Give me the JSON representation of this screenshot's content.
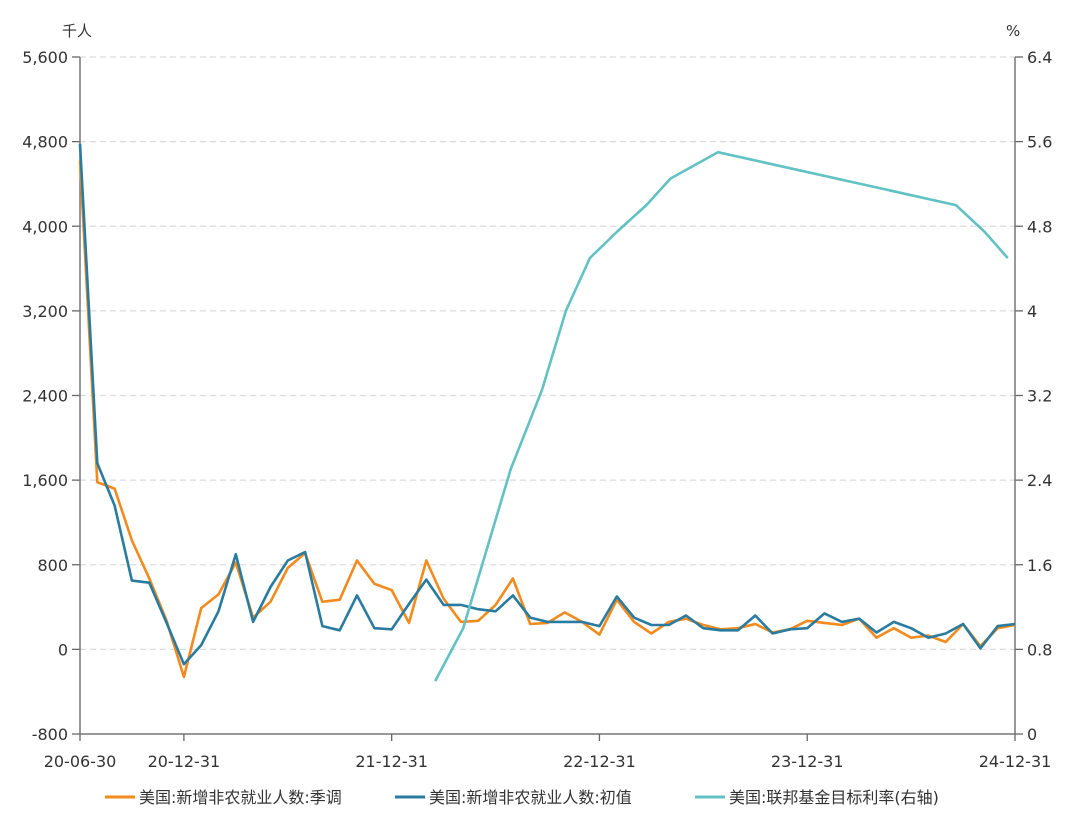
{
  "chart_data": {
    "type": "line",
    "left_unit": "千人",
    "right_unit": "%",
    "x_ticks": [
      {
        "label": "20-06-30",
        "index": 0
      },
      {
        "label": "20-12-31",
        "index": 6
      },
      {
        "label": "21-12-31",
        "index": 18
      },
      {
        "label": "22-12-31",
        "index": 30
      },
      {
        "label": "23-12-31",
        "index": 42
      },
      {
        "label": "24-12-31",
        "index": 54
      }
    ],
    "left_axis": {
      "min": -800,
      "max": 5600,
      "ticks": [
        "-800",
        "0",
        "800",
        "1,600",
        "2,400",
        "3,200",
        "4,000",
        "4,800",
        "5,600"
      ],
      "tick_values": [
        -800,
        0,
        800,
        1600,
        2400,
        3200,
        4000,
        4800,
        5600
      ]
    },
    "right_axis": {
      "min": 0,
      "max": 6.4,
      "ticks": [
        "0",
        "0.8",
        "1.6",
        "2.4",
        "3.2",
        "4",
        "4.8",
        "5.6",
        "6.4"
      ],
      "tick_values": [
        0,
        0.8,
        1.6,
        2.4,
        3.2,
        4,
        4.8,
        5.6,
        6.4
      ]
    },
    "x_start": "2020-06",
    "x_end": "2024-12",
    "series": [
      {
        "name": "美国:新增非农就业人数:季调",
        "axis": "left",
        "color": "#F28A1E",
        "values": [
          4620,
          1580,
          1520,
          1030,
          670,
          270,
          -260,
          390,
          520,
          820,
          300,
          450,
          770,
          910,
          450,
          470,
          840,
          620,
          560,
          250,
          840,
          480,
          260,
          270,
          420,
          670,
          240,
          250,
          350,
          260,
          140,
          470,
          260,
          150,
          260,
          290,
          230,
          190,
          200,
          240,
          160,
          190,
          270,
          250,
          230,
          290,
          110,
          200,
          110,
          130,
          70,
          240,
          30,
          200,
          230
        ]
      },
      {
        "name": "美国:新增非农就业人数:初值",
        "axis": "left",
        "color": "#2A7BA0",
        "values": [
          4780,
          1760,
          1360,
          650,
          630,
          250,
          -140,
          40,
          360,
          900,
          260,
          590,
          840,
          920,
          220,
          180,
          510,
          200,
          190,
          430,
          660,
          420,
          420,
          380,
          360,
          510,
          300,
          260,
          260,
          260,
          220,
          500,
          300,
          230,
          230,
          320,
          200,
          180,
          180,
          320,
          150,
          190,
          200,
          340,
          260,
          290,
          160,
          260,
          200,
          110,
          150,
          240,
          10,
          220,
          240
        ]
      },
      {
        "name": "美国:联邦基金目标利率(右轴)",
        "axis": "right",
        "color": "#62C2C3",
        "points": [
          {
            "date": "2022-03-16",
            "value": 0.5
          },
          {
            "date": "2022-05-04",
            "value": 1.0
          },
          {
            "date": "2022-07-27",
            "value": 2.5
          },
          {
            "date": "2022-09-21",
            "value": 3.25
          },
          {
            "date": "2022-11-02",
            "value": 4.0
          },
          {
            "date": "2022-12-14",
            "value": 4.5
          },
          {
            "date": "2023-02-01",
            "value": 4.75
          },
          {
            "date": "2023-03-22",
            "value": 5.0
          },
          {
            "date": "2023-05-03",
            "value": 5.25
          },
          {
            "date": "2023-07-26",
            "value": 5.5
          },
          {
            "date": "2024-09-18",
            "value": 5.0
          },
          {
            "date": "2024-11-07",
            "value": 4.75
          },
          {
            "date": "2024-12-18",
            "value": 4.5
          }
        ]
      }
    ],
    "grid": true,
    "legend_position": "bottom"
  }
}
